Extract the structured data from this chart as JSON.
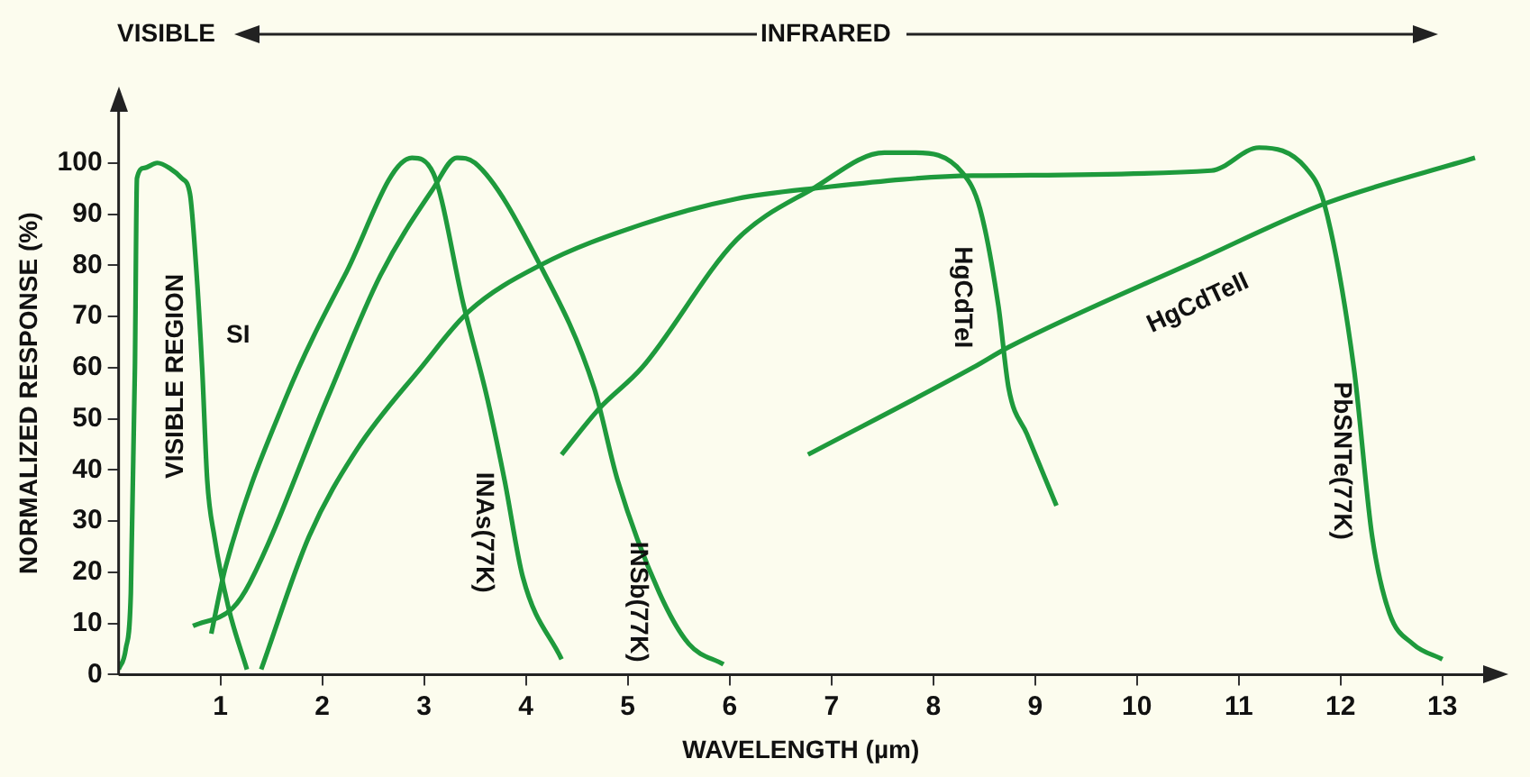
{
  "chart_data": {
    "type": "line",
    "xlabel": "WAVELENGTH (µm)",
    "ylabel": "NORMALIZED RESPONSE (%)",
    "annotations": [
      "VISIBLE",
      "INFRARED",
      "VISIBLE REGION"
    ],
    "xlim": [
      0,
      13.4
    ],
    "xticks": [
      1,
      2,
      3,
      4,
      5,
      6,
      7,
      8,
      9,
      10,
      11,
      12,
      13
    ],
    "ylim": [
      0,
      110
    ],
    "yticks": [
      0,
      10,
      20,
      30,
      40,
      50,
      60,
      70,
      80,
      90,
      100
    ],
    "legend": false,
    "series": [
      {
        "name": "SI",
        "color": "#1e9a3c",
        "x": [
          0,
          0.07,
          0.12,
          0.16,
          0.18,
          0.25,
          0.38,
          0.5,
          0.62,
          0.7,
          0.76,
          0.82,
          0.87,
          0.94,
          1.08,
          1.26
        ],
        "values": [
          1,
          5,
          16,
          60,
          97,
          99,
          100,
          99,
          97,
          94,
          80,
          60,
          38,
          27,
          13,
          1
        ]
      },
      {
        "name": "INAs(77K)",
        "color": "#1e9a3c",
        "x": [
          0.91,
          1.05,
          1.64,
          2.22,
          2.88,
          3.09,
          3.39,
          3.62,
          3.79,
          3.97,
          4.35
        ],
        "values": [
          8,
          21,
          54,
          78,
          101,
          98,
          72,
          54,
          38,
          19,
          3
        ]
      },
      {
        "name": "INSb(77K)",
        "color": "#1e9a3c",
        "x": [
          0.73,
          1.12,
          1.29,
          2.05,
          2.57,
          3.09,
          3.32,
          3.5,
          4.14,
          4.67,
          4.9,
          5.31,
          5.6,
          5.94
        ],
        "values": [
          9.5,
          13,
          18,
          54,
          78,
          95,
          101,
          100,
          80,
          56,
          38,
          16,
          6,
          2
        ]
      },
      {
        "name": "HgCdTeI",
        "color": "#1e9a3c",
        "x": [
          4.35,
          4.72,
          5.14,
          6.07,
          6.82,
          7.52,
          7.81,
          8.29,
          8.46,
          8.64,
          8.74,
          8.92,
          9.21
        ],
        "values": [
          43,
          52,
          60,
          85,
          95,
          102,
          102,
          98,
          91,
          72,
          56,
          47,
          33
        ]
      },
      {
        "name": "HgCdTeII",
        "color": "#1e9a3c",
        "x": [
          6.77,
          8.39,
          8.74,
          10.6,
          11.84,
          13.32
        ],
        "values": [
          43,
          60,
          64,
          81,
          92,
          101
        ]
      },
      {
        "name": "PbSNTe(77K)",
        "color": "#1e9a3c",
        "x": [
          1.4,
          1.87,
          2.34,
          2.97,
          3.44,
          4.14,
          5.14,
          6.07,
          6.82,
          8.39,
          10.73,
          11.2,
          11.66,
          11.84,
          12.13,
          12.31,
          12.48,
          12.71,
          13
        ],
        "values": [
          1,
          27,
          44,
          60,
          71,
          80,
          88,
          93,
          95,
          97.5,
          98.5,
          103,
          99,
          92,
          60,
          27,
          12,
          6,
          3
        ]
      }
    ]
  }
}
